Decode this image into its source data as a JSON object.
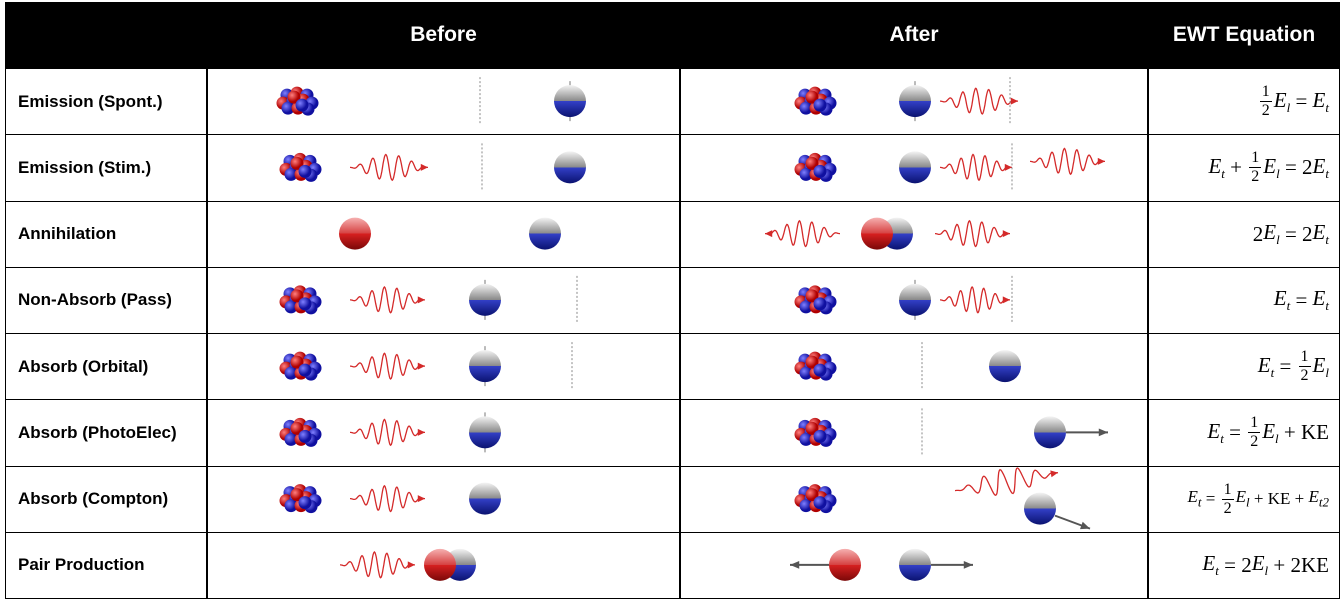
{
  "header": {
    "before": "Before",
    "after": "After",
    "equation": "EWT Equation"
  },
  "rows": [
    {
      "label": "Emission (Spont.)",
      "equation": [
        {
          "frac": [
            "1",
            "2"
          ]
        },
        {
          "base": "E",
          "sub": "l"
        },
        " = ",
        {
          "base": "E",
          "sub": "t"
        }
      ]
    },
    {
      "label": "Emission (Stim.)",
      "equation": [
        {
          "base": "E",
          "sub": "t"
        },
        " + ",
        {
          "frac": [
            "1",
            "2"
          ]
        },
        {
          "base": "E",
          "sub": "l"
        },
        " = 2",
        {
          "base": "E",
          "sub": "t"
        }
      ]
    },
    {
      "label": "Annihilation",
      "equation": [
        "2",
        {
          "base": "E",
          "sub": "l"
        },
        " = 2",
        {
          "base": "E",
          "sub": "t"
        }
      ]
    },
    {
      "label": "Non-Absorb (Pass)",
      "equation": [
        {
          "base": "E",
          "sub": "t"
        },
        " = ",
        {
          "base": "E",
          "sub": "t"
        }
      ]
    },
    {
      "label": "Absorb (Orbital)",
      "equation": [
        {
          "base": "E",
          "sub": "t"
        },
        " = ",
        {
          "frac": [
            "1",
            "2"
          ]
        },
        {
          "base": "E",
          "sub": "l"
        }
      ]
    },
    {
      "label": "Absorb (PhotoElec)",
      "equation": [
        {
          "base": "E",
          "sub": "t"
        },
        " = ",
        {
          "frac": [
            "1",
            "2"
          ]
        },
        {
          "base": "E",
          "sub": "l"
        },
        " + KE"
      ]
    },
    {
      "label": "Absorb (Compton)",
      "equation": [
        {
          "base": "E",
          "sub": "t"
        },
        " = ",
        {
          "frac": [
            "1",
            "2"
          ]
        },
        {
          "base": "E",
          "sub": "l"
        },
        " + KE + ",
        {
          "base": "E",
          "sub": "t2"
        }
      ]
    },
    {
      "label": "Pair Production",
      "equation": [
        {
          "base": "E",
          "sub": "t"
        },
        " = 2",
        {
          "base": "E",
          "sub": "l"
        },
        " + 2KE"
      ]
    }
  ]
}
